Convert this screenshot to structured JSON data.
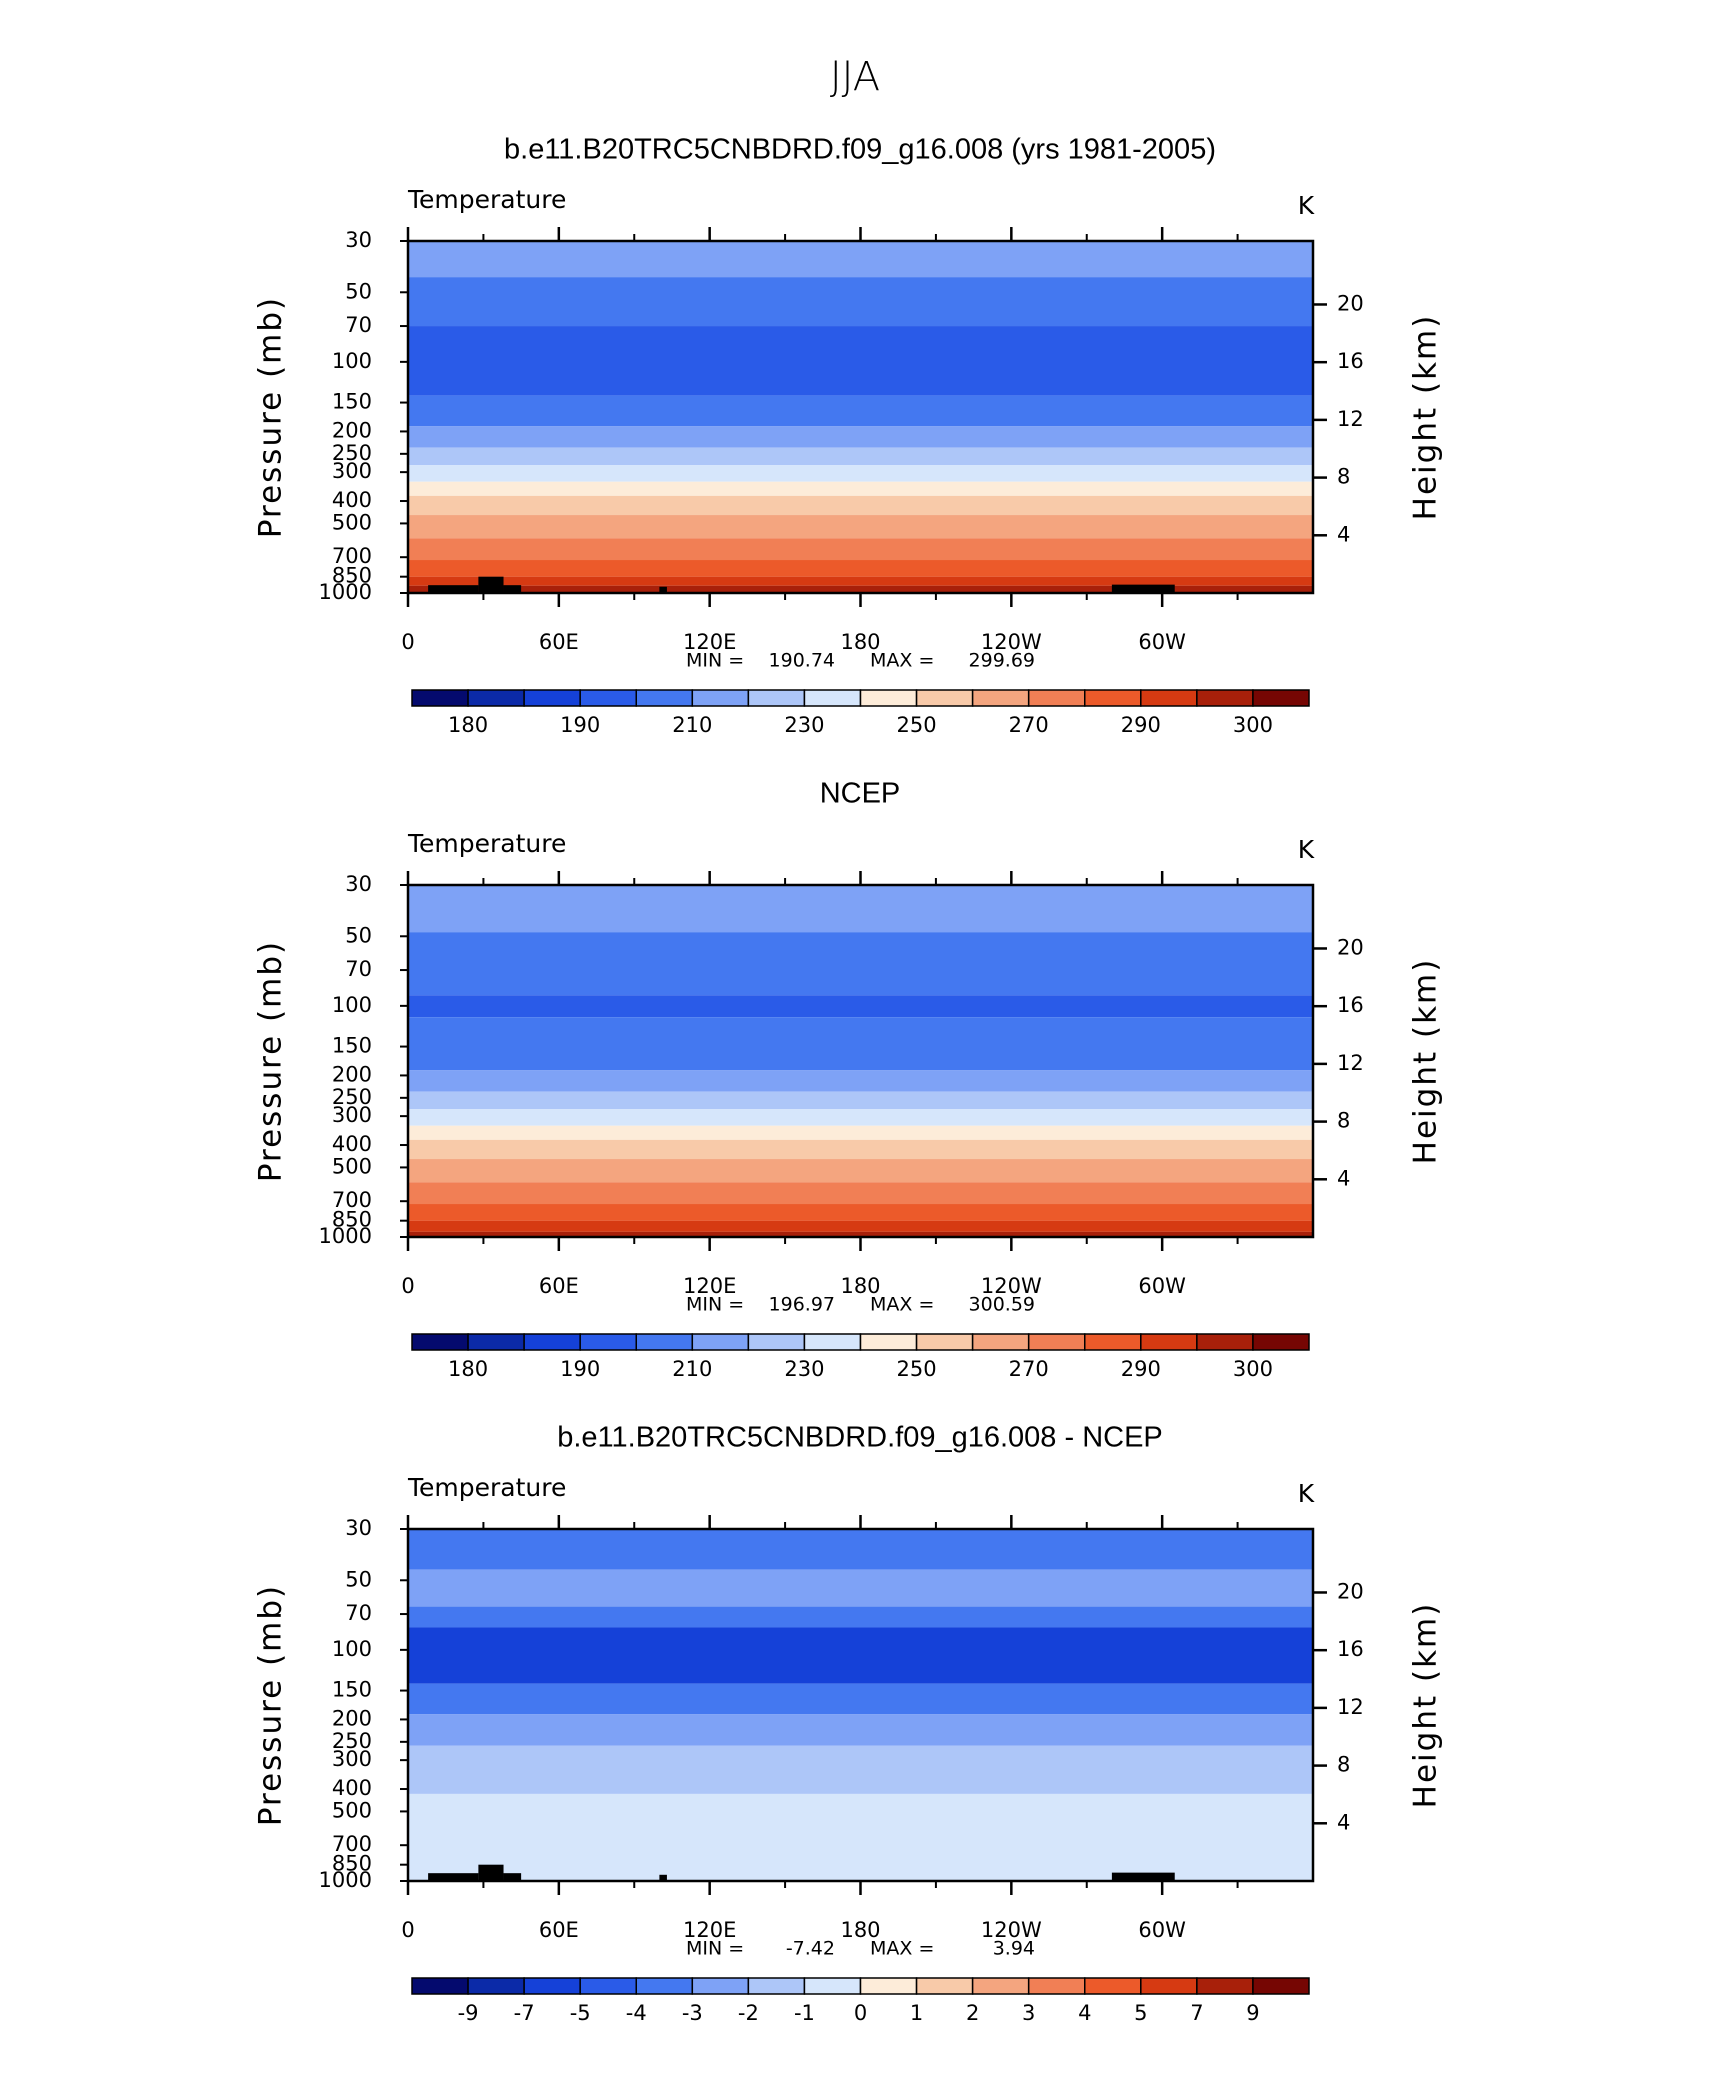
{
  "title": "JJA",
  "chart_data": [
    {
      "type": "contour",
      "title": "b.e11.B20TRC5CNBDRD.f09_g16.008 (yrs 1981-2005)",
      "left_label": "Temperature",
      "right_label": "K",
      "ylabel": "Pressure  (mb)",
      "y2label": "Height  (km)",
      "min_label": "MIN =",
      "min": 190.74,
      "max_label": "MAX =",
      "max": 299.69,
      "xlim": [
        0,
        360
      ],
      "xticks": [
        0,
        {
          "value": 60,
          "label": "60E"
        },
        {
          "value": 120,
          "label": "120E"
        },
        180,
        {
          "value": 240,
          "label": "120W"
        },
        {
          "value": 300,
          "label": "60W"
        }
      ],
      "ylim": [
        1000,
        30
      ],
      "log_scale": true,
      "yticks": [
        30,
        50,
        70,
        100,
        150,
        200,
        250,
        300,
        400,
        500,
        700,
        850,
        1000
      ],
      "y2lim": [
        0,
        24.4
      ],
      "y2ticks": [
        4,
        8,
        12,
        16,
        20
      ],
      "land_mask": true,
      "bands": {
        "pressure": [
          43,
          70,
          140,
          190,
          235,
          280,
          330,
          380,
          460,
          580,
          720,
          850,
          930
        ],
        "color_index": [
          5,
          4,
          3,
          4,
          5,
          6,
          7,
          8,
          9,
          10,
          11,
          12,
          13,
          14
        ]
      },
      "colorbar": {
        "colors": [
          "#040a6e",
          "#0b2aa8",
          "#1541d8",
          "#2a5be8",
          "#4478f0",
          "#7ea2f6",
          "#adc6f8",
          "#d6e6fb",
          "#fdecd9",
          "#f8caa9",
          "#f4a57f",
          "#f17f55",
          "#ec5a2a",
          "#d63a12",
          "#a8200a",
          "#760603"
        ],
        "levels": [
          180,
          null,
          190,
          null,
          210,
          null,
          230,
          null,
          250,
          null,
          270,
          null,
          290,
          null,
          300
        ]
      }
    },
    {
      "type": "contour",
      "title": "NCEP",
      "left_label": "Temperature",
      "right_label": "K",
      "ylabel": "Pressure  (mb)",
      "y2label": "Height  (km)",
      "min_label": "MIN =",
      "min": 196.97,
      "max_label": "MAX =",
      "max": 300.59,
      "xlim": [
        0,
        360
      ],
      "xticks": [
        0,
        {
          "value": 60,
          "label": "60E"
        },
        {
          "value": 120,
          "label": "120E"
        },
        180,
        {
          "value": 240,
          "label": "120W"
        },
        {
          "value": 300,
          "label": "60W"
        }
      ],
      "ylim": [
        1000,
        30
      ],
      "log_scale": true,
      "yticks": [
        30,
        50,
        70,
        100,
        150,
        200,
        250,
        300,
        400,
        500,
        700,
        850,
        1000
      ],
      "y2lim": [
        0,
        24.4
      ],
      "y2ticks": [
        4,
        8,
        12,
        16,
        20
      ],
      "land_mask": false,
      "bands": {
        "pressure": [
          48,
          90,
          112,
          190,
          235,
          280,
          330,
          380,
          460,
          580,
          720,
          850,
          950
        ],
        "color_index": [
          5,
          4,
          3,
          4,
          5,
          6,
          7,
          8,
          9,
          10,
          11,
          12,
          13,
          14
        ]
      },
      "colorbar": {
        "colors": [
          "#040a6e",
          "#0b2aa8",
          "#1541d8",
          "#2a5be8",
          "#4478f0",
          "#7ea2f6",
          "#adc6f8",
          "#d6e6fb",
          "#fdecd9",
          "#f8caa9",
          "#f4a57f",
          "#f17f55",
          "#ec5a2a",
          "#d63a12",
          "#a8200a",
          "#760603"
        ],
        "levels": [
          180,
          null,
          190,
          null,
          210,
          null,
          230,
          null,
          250,
          null,
          270,
          null,
          290,
          null,
          300
        ]
      }
    },
    {
      "type": "contour",
      "title": "b.e11.B20TRC5CNBDRD.f09_g16.008 - NCEP",
      "left_label": "Temperature",
      "right_label": "K",
      "ylabel": "Pressure  (mb)",
      "y2label": "Height  (km)",
      "min_label": "MIN =",
      "min": -7.42,
      "max_label": "MAX =",
      "max": 3.94,
      "xlim": [
        0,
        360
      ],
      "xticks": [
        0,
        {
          "value": 60,
          "label": "60E"
        },
        {
          "value": 120,
          "label": "120E"
        },
        180,
        {
          "value": 240,
          "label": "120W"
        },
        {
          "value": 300,
          "label": "60W"
        }
      ],
      "ylim": [
        1000,
        30
      ],
      "log_scale": true,
      "yticks": [
        30,
        50,
        70,
        100,
        150,
        200,
        250,
        300,
        400,
        500,
        700,
        850,
        1000
      ],
      "y2lim": [
        0,
        24.4
      ],
      "y2ticks": [
        4,
        8,
        12,
        16,
        20
      ],
      "land_mask": true,
      "bands": {
        "pressure": [
          45,
          65,
          80,
          140,
          190,
          260,
          420
        ],
        "color_index": [
          4,
          5,
          4,
          2,
          4,
          5,
          6,
          7
        ]
      },
      "colorbar": {
        "colors": [
          "#040a6e",
          "#0b2aa8",
          "#1541d8",
          "#2a5be8",
          "#4478f0",
          "#7ea2f6",
          "#adc6f8",
          "#d6e6fb",
          "#fdecd9",
          "#f8caa9",
          "#f4a57f",
          "#f17f55",
          "#ec5a2a",
          "#d63a12",
          "#a8200a",
          "#760603"
        ],
        "levels": [
          -9,
          -7,
          -5,
          -4,
          -3,
          -2,
          -1,
          0,
          1,
          2,
          3,
          4,
          5,
          7,
          9
        ]
      }
    }
  ]
}
